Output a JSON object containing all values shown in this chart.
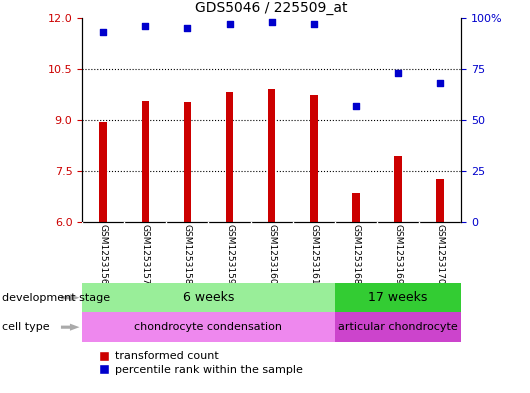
{
  "title": "GDS5046 / 225509_at",
  "samples": [
    "GSM1253156",
    "GSM1253157",
    "GSM1253158",
    "GSM1253159",
    "GSM1253160",
    "GSM1253161",
    "GSM1253168",
    "GSM1253169",
    "GSM1253170"
  ],
  "bar_values": [
    8.93,
    9.55,
    9.52,
    9.82,
    9.92,
    9.72,
    6.85,
    7.95,
    7.25
  ],
  "scatter_values": [
    93,
    96,
    95,
    97,
    98,
    97,
    57,
    73,
    68
  ],
  "ylim_left": [
    6,
    12
  ],
  "ylim_right": [
    0,
    100
  ],
  "yticks_left": [
    6,
    7.5,
    9,
    10.5,
    12
  ],
  "yticks_right": [
    0,
    25,
    50,
    75,
    100
  ],
  "bar_color": "#cc0000",
  "scatter_color": "#0000cc",
  "dev_stage_6w_color": "#99ee99",
  "dev_stage_17w_color": "#33cc33",
  "cell_type_chondro_color": "#ee88ee",
  "cell_type_articular_color": "#cc44cc",
  "dev_stage_label": "development stage",
  "cell_type_label": "cell type",
  "dev_6w_text": "6 weeks",
  "dev_17w_text": "17 weeks",
  "cell_chondro_text": "chondrocyte condensation",
  "cell_articular_text": "articular chondrocyte",
  "legend_bar_label": "transformed count",
  "legend_scatter_label": "percentile rank within the sample",
  "n_6w": 6,
  "n_17w": 3,
  "background_color": "#ffffff",
  "tick_label_color_left": "#cc0000",
  "tick_label_color_right": "#0000cc",
  "sample_bg_color": "#cccccc",
  "sample_divider_color": "#ffffff"
}
